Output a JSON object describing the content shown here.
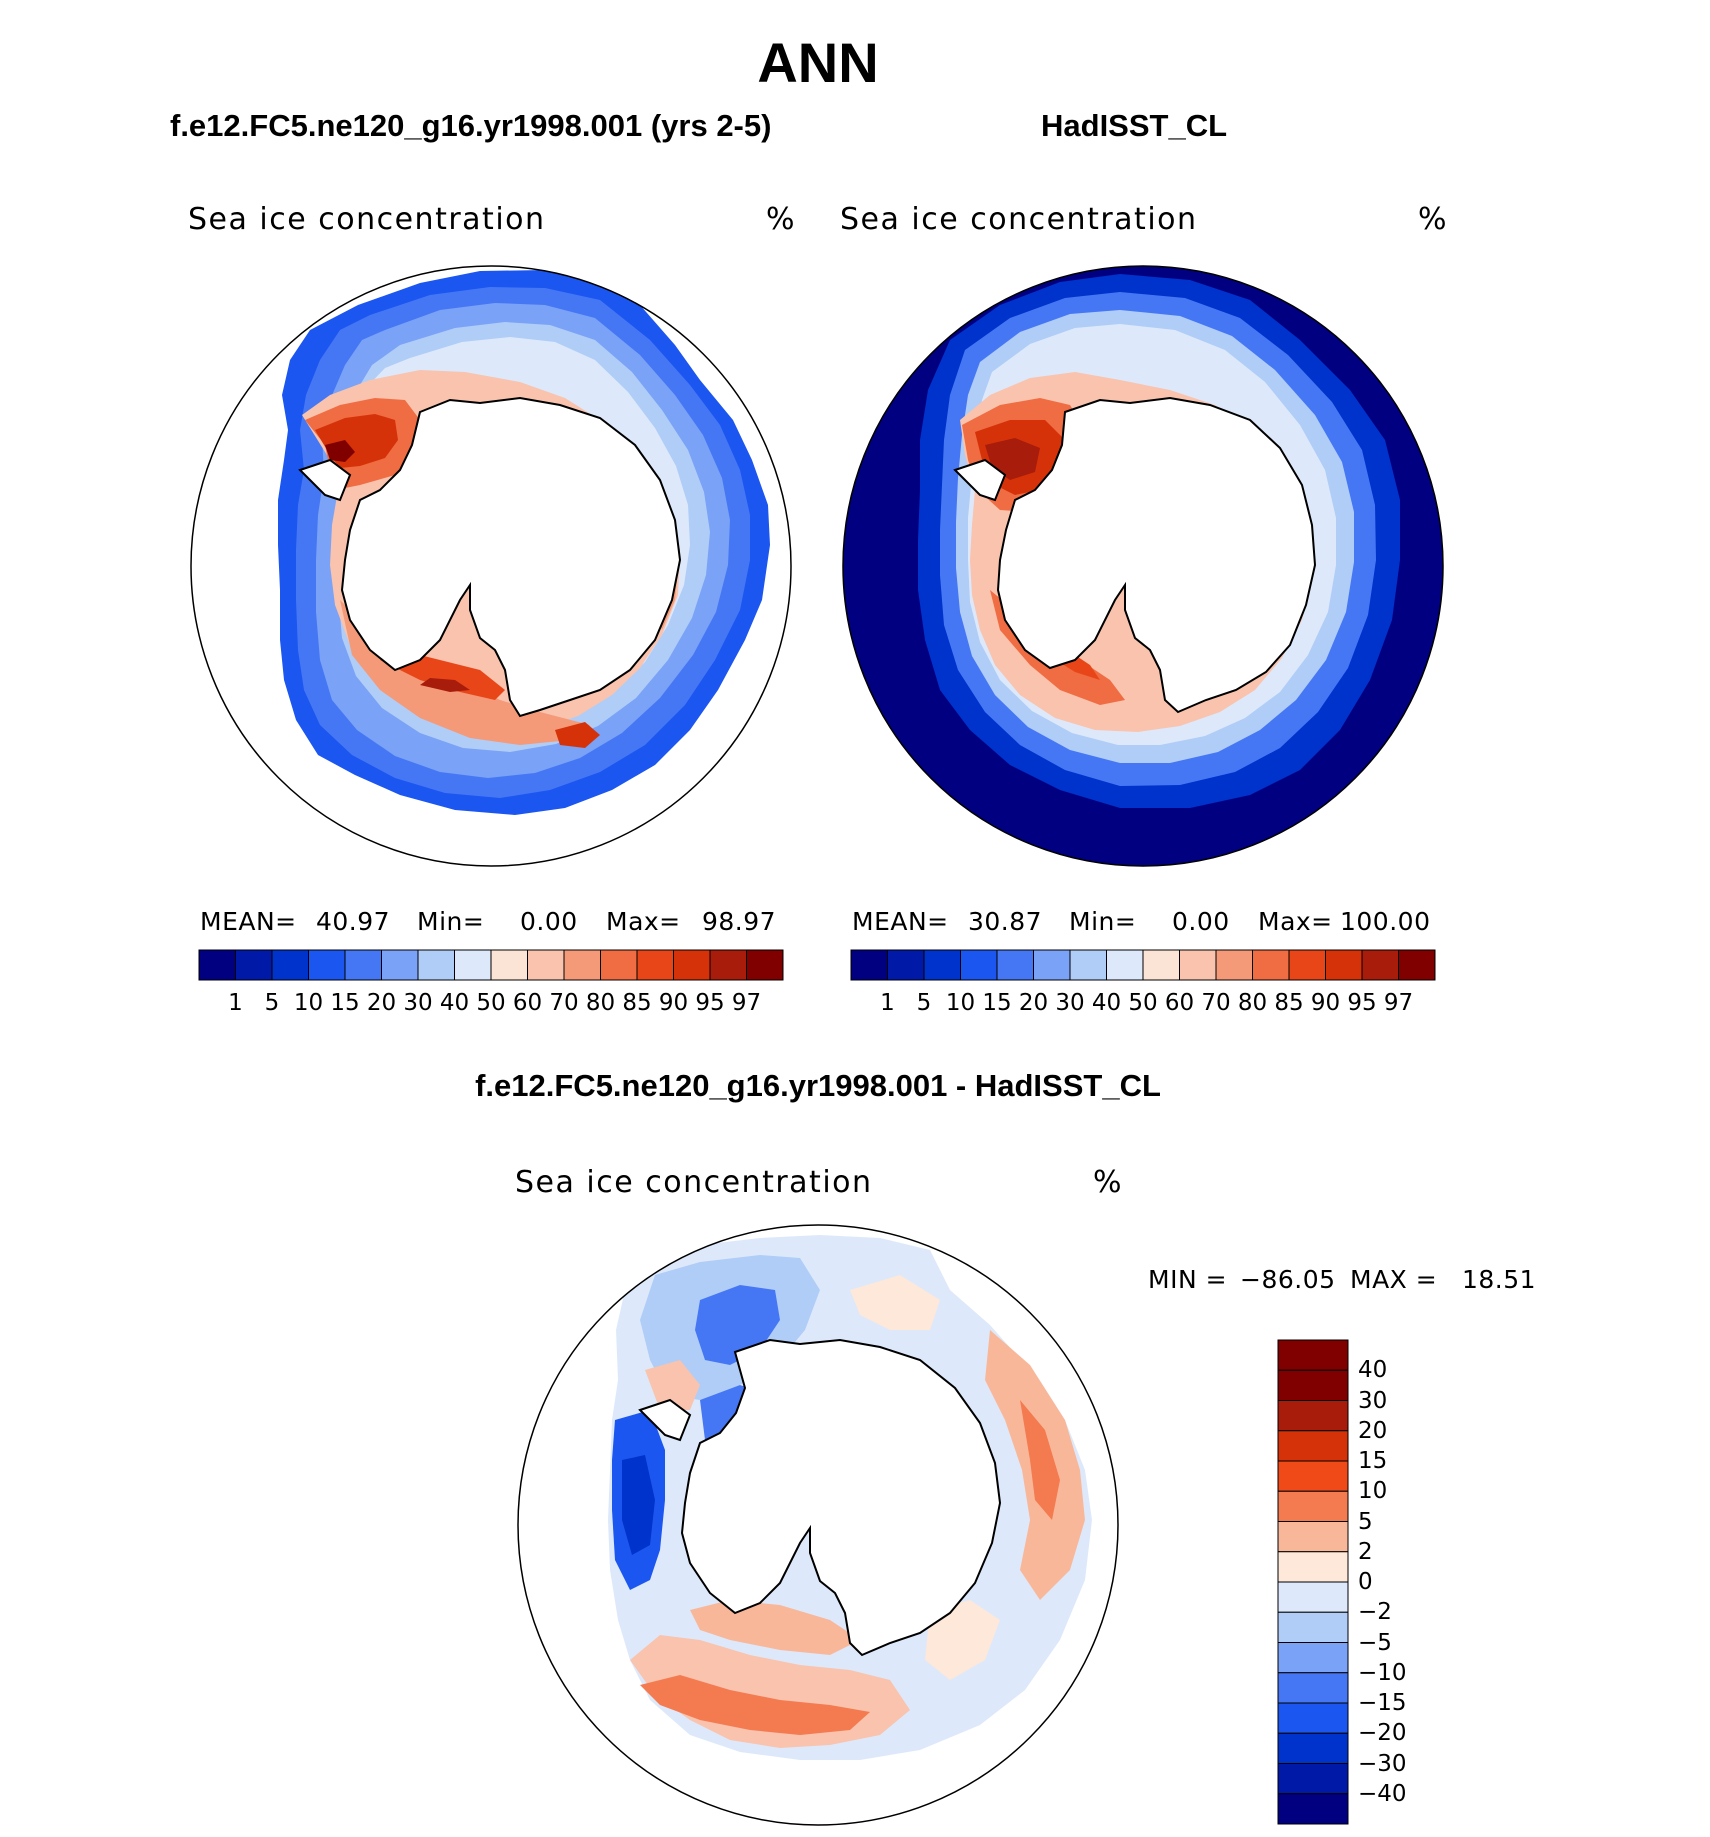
{
  "title": "ANN",
  "panels": {
    "left": {
      "title": "f.e12.FC5.ne120_g16.yr1998.001 (yrs 2-5)",
      "variable": "Sea ice concentration",
      "units": "%",
      "mean_label": "MEAN=",
      "mean_value": "40.97",
      "min_label": "Min=",
      "min_value": "0.00",
      "max_label": "Max=",
      "max_value": "98.97"
    },
    "right": {
      "title": "HadISST_CL",
      "variable": "Sea ice concentration",
      "units": "%",
      "mean_label": "MEAN=",
      "mean_value": "30.87",
      "min_label": "Min=",
      "min_value": "0.00",
      "max_label": "Max=",
      "max_value": "100.00"
    },
    "diff": {
      "title": "f.e12.FC5.ne120_g16.yr1998.001 - HadISST_CL",
      "variable": "Sea ice concentration",
      "units": "%",
      "min_label": "MIN =",
      "min_value": "−86.05",
      "max_label": "MAX =",
      "max_value": "18.51"
    }
  },
  "colorbar_abs": {
    "levels": [
      "1",
      "5",
      "10",
      "15",
      "20",
      "30",
      "40",
      "50",
      "60",
      "70",
      "80",
      "85",
      "90",
      "95",
      "97"
    ],
    "colors": [
      "#000080",
      "#0019a6",
      "#0033cc",
      "#1c56f0",
      "#4577f5",
      "#7aa2f7",
      "#b0cdf7",
      "#dde9fa",
      "#fbe3d6",
      "#f9c3ae",
      "#f49a78",
      "#f06c42",
      "#e84618",
      "#d63209",
      "#a81c0c",
      "#800000"
    ]
  },
  "colorbar_diff": {
    "levels": [
      "40",
      "30",
      "20",
      "15",
      "10",
      "5",
      "2",
      "0",
      "−2",
      "−5",
      "−10",
      "−15",
      "−20",
      "−30",
      "−40"
    ],
    "colors": [
      "#800000",
      "#a81c0c",
      "#d63209",
      "#f04a18",
      "#f47a50",
      "#f9b79a",
      "#fde8da",
      "#dde9fa",
      "#b0cdf7",
      "#7aa2f7",
      "#4577f5",
      "#1c56f0",
      "#0033cc",
      "#0019a6",
      "#000080"
    ]
  }
}
